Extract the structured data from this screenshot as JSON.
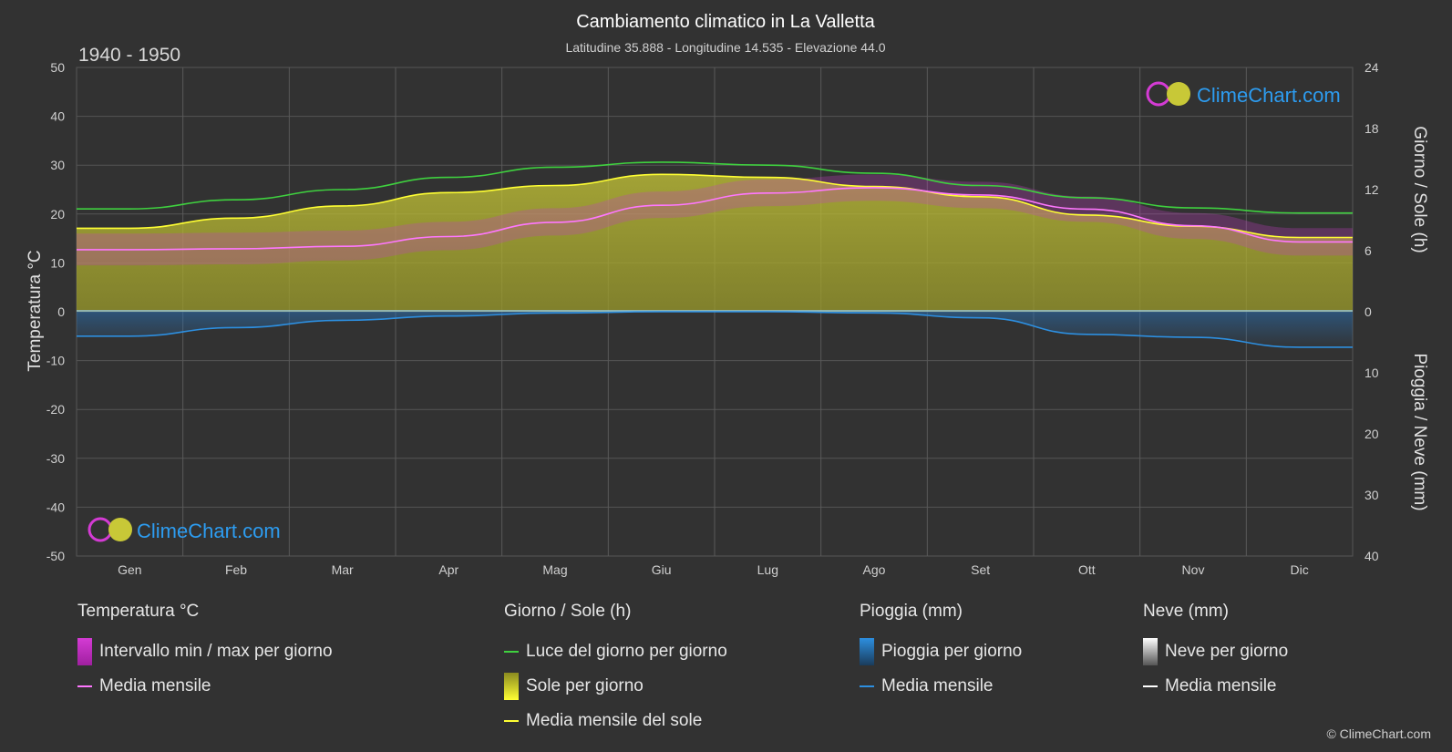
{
  "title": "Cambiamento climatico in La Valletta",
  "subtitle": "Latitudine 35.888 - Longitudine 14.535 - Elevazione 44.0",
  "period": "1940 - 1950",
  "watermark": "ClimeChart.com",
  "copyright": "© ClimeChart.com",
  "colors": {
    "background": "#323232",
    "daylight": "#3fd13f",
    "sun_fill": "#c8c837",
    "sun_mean": "#ffff33",
    "temp_range": "#d43bd4",
    "temp_mean": "#ff77ff",
    "rain_fill": "#2a6fb0",
    "rain_mean": "#2d8fe0",
    "snow_mean": "#ffffff",
    "logo_text": "#2d9cf0"
  },
  "legend": {
    "temp": {
      "title": "Temperatura °C",
      "range": "Intervallo min / max per giorno",
      "mean": "Media mensile"
    },
    "sun": {
      "title": "Giorno / Sole (h)",
      "daylight": "Luce del giorno per giorno",
      "sun": "Sole per giorno",
      "mean": "Media mensile del sole"
    },
    "rain": {
      "title": "Pioggia (mm)",
      "rain": "Pioggia per giorno",
      "mean": "Media mensile"
    },
    "snow": {
      "title": "Neve (mm)",
      "snow": "Neve per giorno",
      "mean": "Media mensile"
    }
  },
  "chart_data": {
    "type": "area",
    "categories": [
      "Gen",
      "Feb",
      "Mar",
      "Apr",
      "Mag",
      "Giu",
      "Lug",
      "Ago",
      "Set",
      "Ott",
      "Nov",
      "Dic"
    ],
    "left_axis": {
      "label": "Temperatura °C",
      "range": [
        -50,
        50
      ],
      "ticks": [
        50,
        40,
        30,
        20,
        10,
        0,
        -10,
        -20,
        -30,
        -40,
        -50
      ]
    },
    "right_axis_top": {
      "label": "Giorno / Sole (h)",
      "range": [
        0,
        24
      ],
      "ticks": [
        24,
        18,
        12,
        6,
        0
      ]
    },
    "right_axis_bottom": {
      "label": "Pioggia / Neve (mm)",
      "range": [
        0,
        40
      ],
      "ticks": [
        0,
        10,
        20,
        30,
        40
      ]
    },
    "grid": true,
    "series": [
      {
        "name": "Luce del giorno per giorno",
        "unit": "h",
        "values": [
          10.1,
          11.0,
          12.0,
          13.2,
          14.2,
          14.7,
          14.4,
          13.6,
          12.4,
          11.2,
          10.2,
          9.7
        ]
      },
      {
        "name": "Media mensile del sole",
        "unit": "h",
        "values": [
          8.2,
          9.2,
          10.4,
          11.7,
          12.4,
          13.5,
          13.2,
          12.3,
          11.3,
          9.5,
          8.4,
          7.3
        ]
      },
      {
        "name": "Media mensile",
        "group": "Temperatura °C",
        "unit": "°C",
        "values": [
          12.7,
          12.9,
          13.4,
          15.4,
          18.3,
          21.8,
          24.3,
          25.4,
          23.9,
          21.0,
          17.6,
          14.3
        ]
      },
      {
        "name": "Intervallo min / max per giorno",
        "group": "Temperatura °C",
        "unit": "°C",
        "min": [
          9.5,
          9.7,
          10.5,
          12.6,
          15.6,
          19.2,
          21.6,
          22.7,
          21.2,
          18.4,
          14.9,
          11.5
        ],
        "max": [
          16.0,
          16.2,
          16.6,
          18.4,
          21.2,
          24.6,
          27.1,
          28.1,
          26.6,
          23.6,
          20.2,
          17.1
        ]
      },
      {
        "name": "Media mensile",
        "group": "Pioggia (mm)",
        "unit": "mm",
        "values": [
          4.0,
          2.6,
          1.4,
          0.7,
          0.2,
          0.0,
          0.0,
          0.2,
          1.0,
          3.7,
          4.2,
          5.8
        ]
      },
      {
        "name": "Media mensile",
        "group": "Neve (mm)",
        "unit": "mm",
        "values": [
          0,
          0,
          0,
          0,
          0,
          0,
          0,
          0,
          0,
          0,
          0,
          0
        ]
      }
    ]
  }
}
